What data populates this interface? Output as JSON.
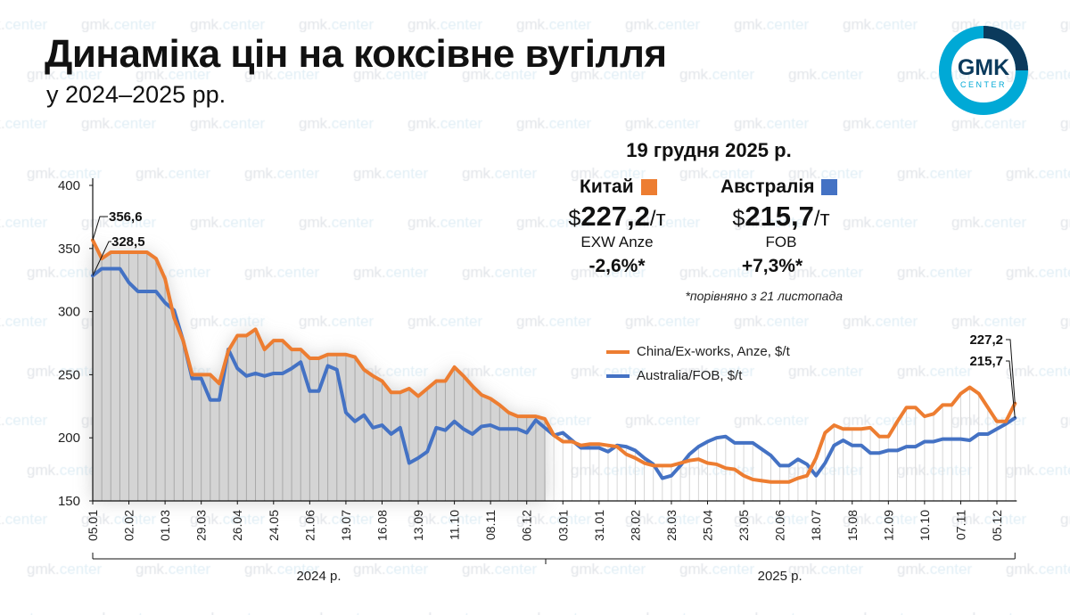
{
  "header": {
    "title": "Динаміка цін на коксівне вугілля",
    "subtitle": "у 2024–2025 рр."
  },
  "logo": {
    "text_top": "GMK",
    "text_bottom": "CENTER",
    "ring_color": "#00A9D6",
    "accent_color": "#0B3A5C"
  },
  "watermark": "gmk.center",
  "info": {
    "date": "19 грудня 2025 р.",
    "note": "*порівняно з 21 листопада",
    "china": {
      "label": "Китай",
      "currency": "$",
      "price": "227,2",
      "unit": "/т",
      "basis": "EXW Anze",
      "change": "-2,6%*",
      "color": "#ED7D31"
    },
    "australia": {
      "label": "Австралія",
      "currency": "$",
      "price": "215,7",
      "unit": "/т",
      "basis": "FOB",
      "change": "+7,3%*",
      "color": "#4472C4"
    }
  },
  "chart_data": {
    "type": "line",
    "xlabel": "",
    "ylabel": "",
    "ylim": [
      150,
      400
    ],
    "yticks": [
      "150",
      "200",
      "250",
      "300",
      "350",
      "400"
    ],
    "x_start": "05.01.2024",
    "x_end": "19.12.2025",
    "x_frequency": "weekly",
    "xtick_labels": [
      "05.01",
      "02.02",
      "01.03",
      "29.03",
      "26.04",
      "24.05",
      "21.06",
      "19.07",
      "16.08",
      "13.09",
      "11.10",
      "08.11",
      "06.12",
      "03.01",
      "31.01",
      "28.02",
      "28.03",
      "25.04",
      "23.05",
      "20.06",
      "18.07",
      "15.08",
      "12.09",
      "10.10",
      "07.11",
      "05.12"
    ],
    "year_labels": [
      "2024 р.",
      "2025 р."
    ],
    "legend_placement": "center-right",
    "series": [
      {
        "name": "China/Ex-works, Anze, $/t",
        "color": "#ED7D31",
        "values": [
          356.6,
          342,
          347,
          347,
          347,
          347,
          347,
          342,
          326,
          295,
          277,
          250,
          250,
          250,
          243,
          269,
          281,
          281,
          286,
          270,
          277,
          277,
          270,
          270,
          263,
          263,
          266,
          266,
          266,
          264,
          254,
          249,
          245,
          236,
          236,
          239,
          233,
          239,
          245,
          245,
          256,
          249,
          241,
          234,
          231,
          226,
          220,
          217,
          217,
          217,
          215,
          202,
          197,
          197,
          194,
          195,
          195,
          194,
          193,
          187,
          184,
          180,
          178,
          178,
          178,
          180,
          182,
          183,
          180,
          179,
          176,
          175,
          170,
          167,
          166,
          165,
          165,
          165,
          168,
          170,
          184,
          204,
          210,
          207,
          207,
          207,
          208,
          201,
          201,
          213,
          224,
          224,
          217,
          219,
          226,
          226,
          235,
          240,
          235,
          224,
          213,
          213,
          227.2
        ]
      },
      {
        "name": "Australia/FOB, $/t",
        "color": "#4472C4",
        "values": [
          328.5,
          334,
          334,
          334,
          323,
          316,
          316,
          316,
          307,
          301,
          277,
          247,
          247,
          230,
          230,
          270,
          255,
          249,
          251,
          249,
          251,
          251,
          255,
          260,
          237,
          237,
          257,
          254,
          220,
          213,
          218,
          208,
          210,
          203,
          208,
          180,
          184,
          189,
          208,
          206,
          213,
          207,
          203,
          209,
          210,
          207,
          207,
          207,
          204,
          214,
          208,
          202,
          204,
          198,
          192,
          192,
          192,
          189,
          194,
          193,
          190,
          184,
          179,
          168,
          170,
          178,
          187,
          193,
          197,
          200,
          201,
          196,
          196,
          196,
          191,
          186,
          178,
          178,
          183,
          179,
          170,
          180,
          194,
          198,
          194,
          194,
          188,
          188,
          190,
          190,
          193,
          193,
          197,
          197,
          199,
          199,
          199,
          198,
          203,
          203,
          207,
          211,
          215.7
        ]
      }
    ],
    "annotations": [
      "356,6",
      "328,5",
      "227,2",
      "215,7"
    ]
  }
}
